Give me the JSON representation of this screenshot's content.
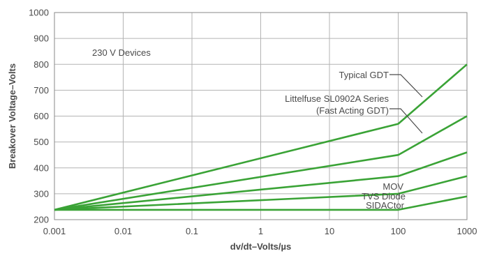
{
  "chart_data": {
    "type": "line",
    "xscale": "log",
    "xlabel": "dv/dt–Volts/µs",
    "ylabel": "Breakover Voltage–Volts",
    "xlim": [
      0.001,
      1000
    ],
    "ylim": [
      200,
      1000
    ],
    "x_ticks": [
      0.001,
      0.01,
      0.1,
      1,
      10,
      100,
      1000
    ],
    "x_tick_labels": [
      "0.001",
      "0.01",
      "0.1",
      "1",
      "10",
      "100",
      "1000"
    ],
    "y_ticks": [
      200,
      300,
      400,
      500,
      600,
      700,
      800,
      900,
      1000
    ],
    "y_tick_labels": [
      "200",
      "300",
      "400",
      "500",
      "600",
      "700",
      "800",
      "900",
      "1000"
    ],
    "grid": true,
    "annotation": "230 V Devices",
    "line_color": "#3aa336",
    "series": [
      {
        "name": "Typical GDT",
        "x": [
          0.001,
          100,
          1000
        ],
        "y": [
          238,
          570,
          800
        ]
      },
      {
        "name": "Littelfuse SL0902A Series",
        "name_line2": "(Fast Acting GDT)",
        "x": [
          0.001,
          100,
          1000
        ],
        "y": [
          238,
          450,
          600
        ]
      },
      {
        "name": "MOV",
        "x": [
          0.001,
          100,
          1000
        ],
        "y": [
          238,
          368,
          460
        ]
      },
      {
        "name": "TVS Diode",
        "x": [
          0.001,
          100,
          1000
        ],
        "y": [
          238,
          300,
          368
        ]
      },
      {
        "name": "SIDACtor",
        "x": [
          0.001,
          100,
          1000
        ],
        "y": [
          238,
          238,
          290
        ]
      }
    ]
  }
}
